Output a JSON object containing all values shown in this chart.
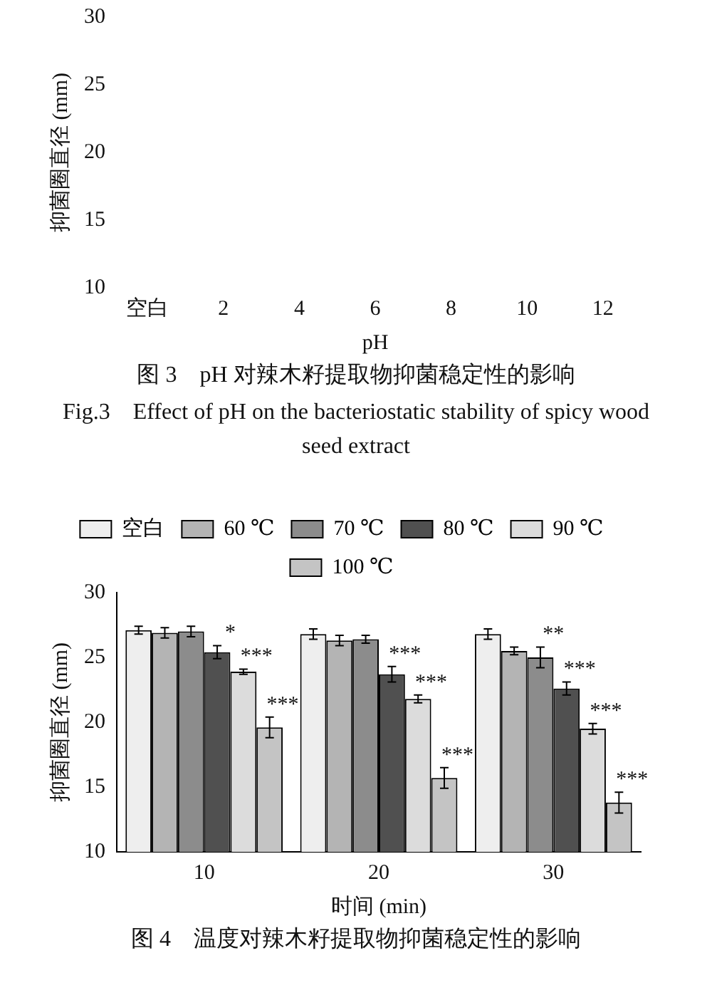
{
  "chart_data": [
    {
      "type": "bar",
      "title": "图 3　pH 对辣木籽提取物抑菌稳定性的影响",
      "subtitle": "Fig.3　Effect of pH on the bacteriostatic stability of spicy wood seed extract",
      "xlabel": "pH",
      "ylabel": "抑菌圈直径 (mm)",
      "categories": [
        "空白",
        "2",
        "4",
        "6",
        "8",
        "10",
        "12"
      ],
      "series": [
        {
          "values": [
            null,
            null,
            null,
            null,
            null,
            null,
            null
          ]
        }
      ],
      "ylim": [
        10,
        30
      ],
      "yticks": [
        10,
        15,
        20,
        25,
        30
      ],
      "grid": false,
      "legend": false
    },
    {
      "type": "bar",
      "title": "图 4　温度对辣木籽提取物抑菌稳定性的影响",
      "xlabel": "时间 (min)",
      "ylabel": "抑菌圈直径 (mm)",
      "categories": [
        "10",
        "20",
        "30"
      ],
      "series": [
        {
          "name": "空白",
          "color": "#eeeeee",
          "values": [
            27.1,
            26.8,
            26.8
          ],
          "errors": [
            0.3,
            0.4,
            0.4
          ]
        },
        {
          "name": "60 ℃",
          "color": "#b4b4b4",
          "values": [
            26.9,
            26.3,
            25.5
          ],
          "errors": [
            0.4,
            0.4,
            0.3
          ]
        },
        {
          "name": "70 ℃",
          "color": "#8c8c8c",
          "values": [
            27.0,
            26.4,
            25.0
          ],
          "errors": [
            0.4,
            0.3,
            0.8
          ]
        },
        {
          "name": "80 ℃",
          "color": "#505050",
          "values": [
            25.4,
            23.7,
            22.6
          ],
          "errors": [
            0.5,
            0.6,
            0.5
          ]
        },
        {
          "name": "90 ℃",
          "color": "#dcdcdc",
          "values": [
            23.9,
            21.8,
            19.5
          ],
          "errors": [
            0.2,
            0.3,
            0.4
          ]
        },
        {
          "name": "100 ℃",
          "color": "#c4c4c4",
          "values": [
            19.6,
            15.7,
            13.8
          ],
          "errors": [
            0.8,
            0.8,
            0.8
          ]
        }
      ],
      "annotations": [
        {
          "text": "*",
          "x": "10",
          "y": 25.4
        },
        {
          "text": "***",
          "x": "10",
          "y": 23.9
        },
        {
          "text": "***",
          "x": "10",
          "y": 19.6
        },
        {
          "text": "***",
          "x": "20",
          "y": 23.7
        },
        {
          "text": "***",
          "x": "20",
          "y": 21.8
        },
        {
          "text": "***",
          "x": "20",
          "y": 15.7
        },
        {
          "text": "**",
          "x": "30",
          "y": 25.0
        },
        {
          "text": "***",
          "x": "30",
          "y": 22.6
        },
        {
          "text": "***",
          "x": "30",
          "y": 19.5
        },
        {
          "text": "***",
          "x": "30",
          "y": 13.8
        }
      ],
      "ylim": [
        10,
        30
      ],
      "yticks": [
        10,
        15,
        20,
        25,
        30
      ],
      "grid": false,
      "legend": "top"
    }
  ]
}
